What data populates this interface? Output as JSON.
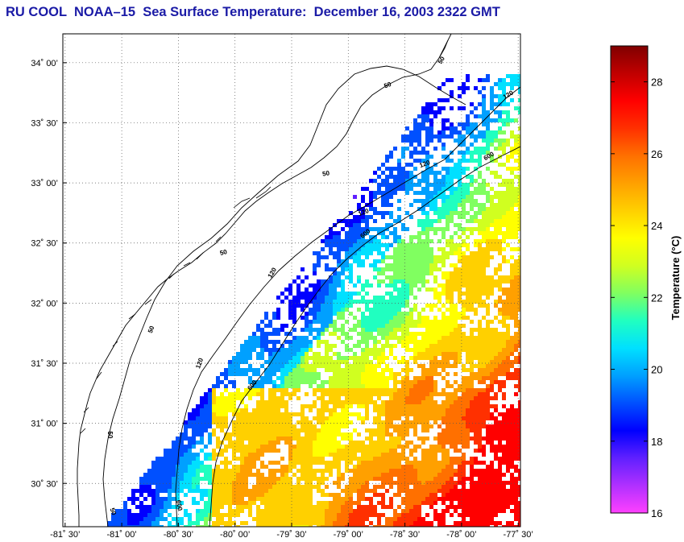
{
  "title": "RU COOL  NOAA–15  Sea Surface Temperature:  December 16, 2003 2322 GMT",
  "map": {
    "lat_labels": [
      "34˚ 00’",
      "33˚ 30’",
      "33˚ 00’",
      "32˚ 30’",
      "32˚ 00’",
      "31˚ 30’",
      "31˚ 00’",
      "30˚ 30’"
    ],
    "lon_labels": [
      "-81˚ 30’",
      "-81˚ 00’",
      "-80˚ 30’",
      "-80˚ 00’",
      "-79˚ 30’",
      "-79˚ 00’",
      "-78˚ 30’",
      "-78˚ 00’",
      "-77˚ 30’"
    ],
    "lat_values": [
      34.0,
      33.5,
      33.0,
      32.5,
      32.0,
      31.5,
      31.0,
      30.5
    ],
    "lon_values": [
      -81.5,
      -81.0,
      -80.5,
      -80.0,
      -79.5,
      -79.0,
      -78.5,
      -78.0,
      -77.5
    ],
    "lat_range": [
      30.14,
      34.24
    ],
    "lon_range": [
      -81.52,
      -77.48
    ],
    "grid": "dotted",
    "contour_labels": [
      "50",
      "50",
      "50",
      "50",
      "50",
      "50",
      "50",
      "120",
      "120",
      "120",
      "120",
      "120",
      "600",
      "600",
      "600",
      "600"
    ],
    "colors": {
      "coast": "#000000",
      "title": "#1a1aa6",
      "land": "#ffffff"
    }
  },
  "colorbar": {
    "title": "Temperature (°C)",
    "ticks": [
      16,
      18,
      20,
      22,
      24,
      26,
      28
    ],
    "min": 16,
    "max": 29,
    "colormap": [
      "#ff40ff",
      "#b030ff",
      "#6020ff",
      "#0000ff",
      "#0050ff",
      "#00a0ff",
      "#00e0ff",
      "#20ffc0",
      "#80ff60",
      "#d0ff20",
      "#ffff00",
      "#ffd000",
      "#ffa000",
      "#ff7000",
      "#ff3000",
      "#ff0000",
      "#c00000",
      "#800000"
    ]
  }
}
